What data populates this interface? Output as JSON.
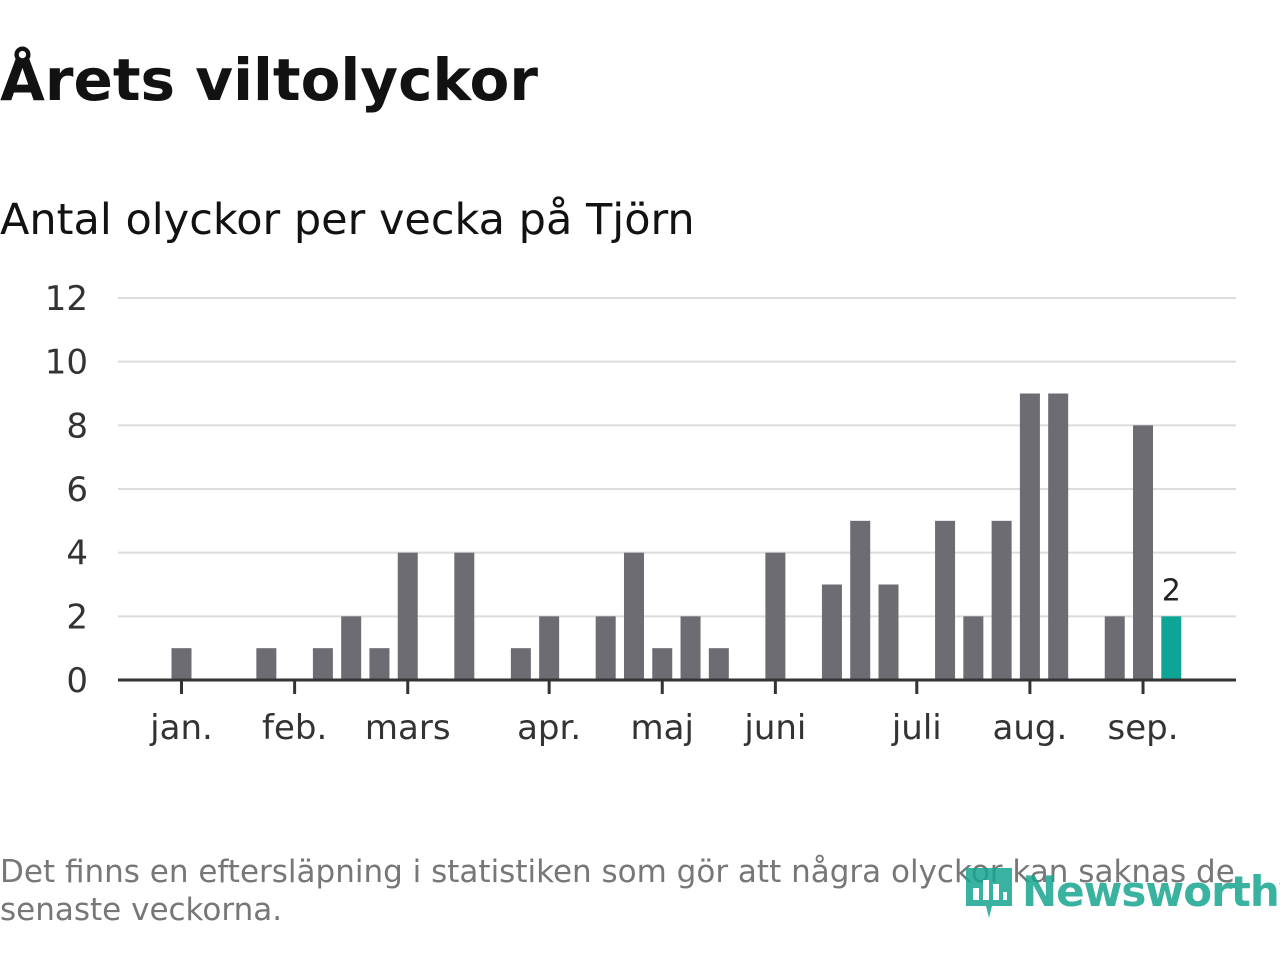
{
  "title": "Årets viltolyckor",
  "subtitle": "Antal olyckor per vecka på Tjörn",
  "footnote": "Det finns en eftersläpning i statistiken som gör att några olyckor kan saknas de senaste veckorna.",
  "brand": {
    "name": "Newsworthy",
    "color": "#17a590"
  },
  "colors": {
    "bar": "#6d6c72",
    "highlight": "#0ea596",
    "grid": "#dcdcdc",
    "axis": "#333333"
  },
  "chart_data": {
    "type": "bar",
    "title": "Antal olyckor per vecka på Tjörn",
    "xlabel": "",
    "ylabel": "",
    "ylim": [
      0,
      12
    ],
    "y_ticks": [
      "0",
      "2",
      "4",
      "6",
      "8",
      "10",
      "12"
    ],
    "grid": true,
    "x_tick_labels": [
      {
        "label": "jan.",
        "week": 1
      },
      {
        "label": "feb.",
        "week": 5
      },
      {
        "label": "mars",
        "week": 9
      },
      {
        "label": "apr.",
        "week": 14
      },
      {
        "label": "maj",
        "week": 18
      },
      {
        "label": "juni",
        "week": 22
      },
      {
        "label": "juli",
        "week": 27
      },
      {
        "label": "aug.",
        "week": 31
      },
      {
        "label": "sep.",
        "week": 35
      }
    ],
    "weeks": [
      1,
      2,
      3,
      4,
      5,
      6,
      7,
      8,
      9,
      10,
      11,
      12,
      13,
      14,
      15,
      16,
      17,
      18,
      19,
      20,
      21,
      22,
      23,
      24,
      25,
      26,
      27,
      28,
      29,
      30,
      31,
      32,
      33,
      34,
      35,
      36
    ],
    "values": [
      1,
      0,
      0,
      1,
      0,
      1,
      2,
      1,
      4,
      0,
      4,
      0,
      1,
      2,
      0,
      2,
      4,
      1,
      2,
      1,
      0,
      4,
      0,
      3,
      5,
      3,
      0,
      5,
      2,
      5,
      9,
      9,
      0,
      2,
      8,
      2
    ],
    "highlight_index": 35,
    "highlight_label": "2"
  }
}
